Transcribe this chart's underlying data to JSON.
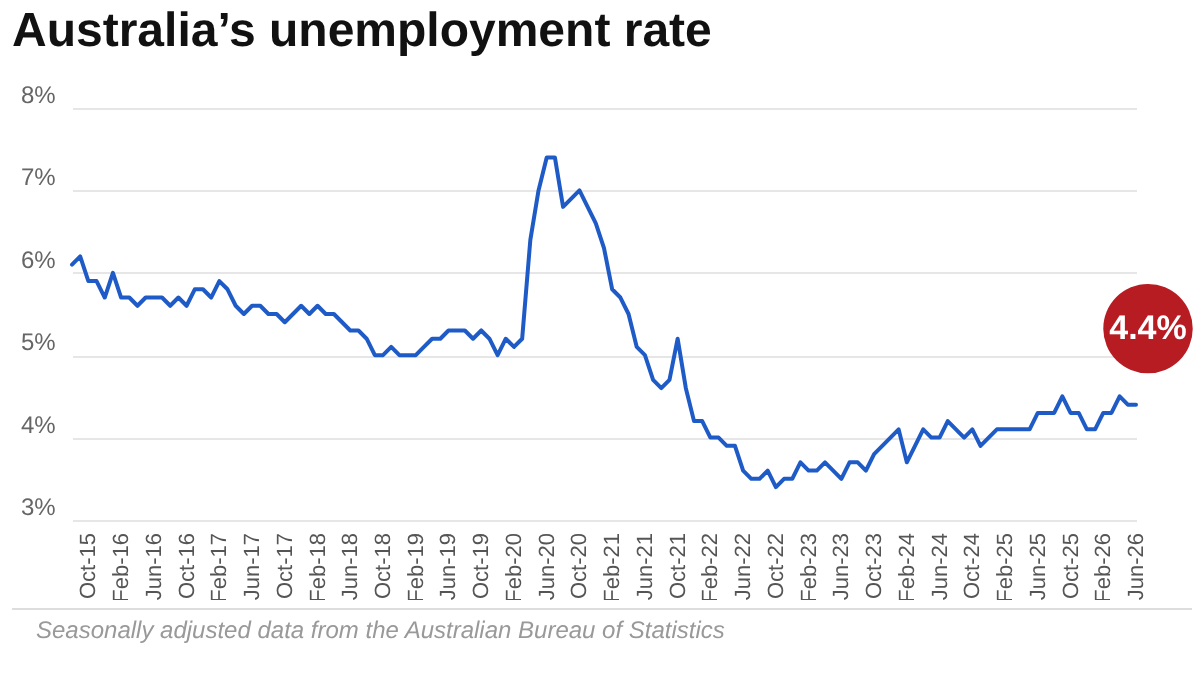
{
  "chart_data": {
    "type": "line",
    "title": "Australia’s unemployment rate",
    "categories": [
      null,
      null,
      "Oct-15",
      null,
      null,
      null,
      "Feb-16",
      null,
      null,
      null,
      "Jun-16",
      null,
      null,
      null,
      "Oct-16",
      null,
      null,
      null,
      "Feb-17",
      null,
      null,
      null,
      "Jun-17",
      null,
      null,
      null,
      "Oct-17",
      null,
      null,
      null,
      "Feb-18",
      null,
      null,
      null,
      "Jun-18",
      null,
      null,
      null,
      "Oct-18",
      null,
      null,
      null,
      "Feb-19",
      null,
      null,
      null,
      "Jun-19",
      null,
      null,
      null,
      "Oct-19",
      null,
      null,
      null,
      "Feb-20",
      null,
      null,
      null,
      "Jun-20",
      null,
      null,
      null,
      "Oct-20",
      null,
      null,
      null,
      "Feb-21",
      null,
      null,
      null,
      "Jun-21",
      null,
      null,
      null,
      "Oct-21",
      null,
      null,
      null,
      "Feb-22",
      null,
      null,
      null,
      "Jun-22",
      null,
      null,
      null,
      "Oct-22",
      null,
      null,
      null,
      "Feb-23",
      null,
      null,
      null,
      "Jun-23",
      null,
      null,
      null,
      "Oct-23",
      null,
      null,
      null,
      "Feb-24",
      null,
      null,
      null,
      "Jun-24",
      null,
      null,
      null,
      "Oct-24",
      null,
      null,
      null,
      "Feb-25",
      null,
      null,
      null,
      "Jun-25",
      null,
      null,
      null,
      "Oct-25",
      null,
      null,
      null,
      "Feb-26",
      null,
      null,
      null,
      "Jun-26"
    ],
    "series": [
      {
        "color": "#1f5bc6",
        "values": [
          6.1,
          6.2,
          5.9,
          5.9,
          5.7,
          6.0,
          5.7,
          5.7,
          5.6,
          5.7,
          5.7,
          5.7,
          5.6,
          5.7,
          5.6,
          5.8,
          5.8,
          5.7,
          5.9,
          5.8,
          5.6,
          5.5,
          5.6,
          5.6,
          5.5,
          5.5,
          5.4,
          5.5,
          5.6,
          5.5,
          5.6,
          5.5,
          5.5,
          5.4,
          5.3,
          5.3,
          5.2,
          5.0,
          5.0,
          5.1,
          5.0,
          5.0,
          5.0,
          5.1,
          5.2,
          5.2,
          5.3,
          5.3,
          5.3,
          5.2,
          5.3,
          5.2,
          5.0,
          5.2,
          5.1,
          5.2,
          6.4,
          7.0,
          7.4,
          7.4,
          6.8,
          6.9,
          7.0,
          6.8,
          6.6,
          6.3,
          5.8,
          5.7,
          5.5,
          5.1,
          5.0,
          4.7,
          4.6,
          4.7,
          5.2,
          4.6,
          4.2,
          4.2,
          4.0,
          4.0,
          3.9,
          3.9,
          3.6,
          3.5,
          3.5,
          3.6,
          3.4,
          3.5,
          3.5,
          3.7,
          3.6,
          3.6,
          3.7,
          3.6,
          3.5,
          3.7,
          3.7,
          3.6,
          3.8,
          3.9,
          4.0,
          4.1,
          3.7,
          3.9,
          4.1,
          4.0,
          4.0,
          4.2,
          4.1,
          4.0,
          4.1,
          3.9,
          4.0,
          4.1,
          4.1,
          4.1,
          4.1,
          4.1,
          4.3,
          4.3,
          4.3,
          4.5,
          4.3,
          4.3,
          4.1,
          4.1,
          4.3,
          4.3,
          4.5,
          4.4,
          4.4
        ]
      }
    ],
    "ylim": [
      3,
      8
    ],
    "yticks": [
      {
        "value": 3,
        "label": "3%"
      },
      {
        "value": 4,
        "label": "4%"
      },
      {
        "value": 5,
        "label": "5%"
      },
      {
        "value": 6,
        "label": "6%"
      },
      {
        "value": 7,
        "label": "7%"
      },
      {
        "value": 8,
        "label": "8%"
      }
    ],
    "grid": "y",
    "marker": "none",
    "line_style": "solid",
    "annotations": [
      {
        "text": "4.4%",
        "x": "Jun-26",
        "y": 4.4
      },
      "Seasonally adjusted data from the Australian Bureau of Statistics"
    ]
  }
}
